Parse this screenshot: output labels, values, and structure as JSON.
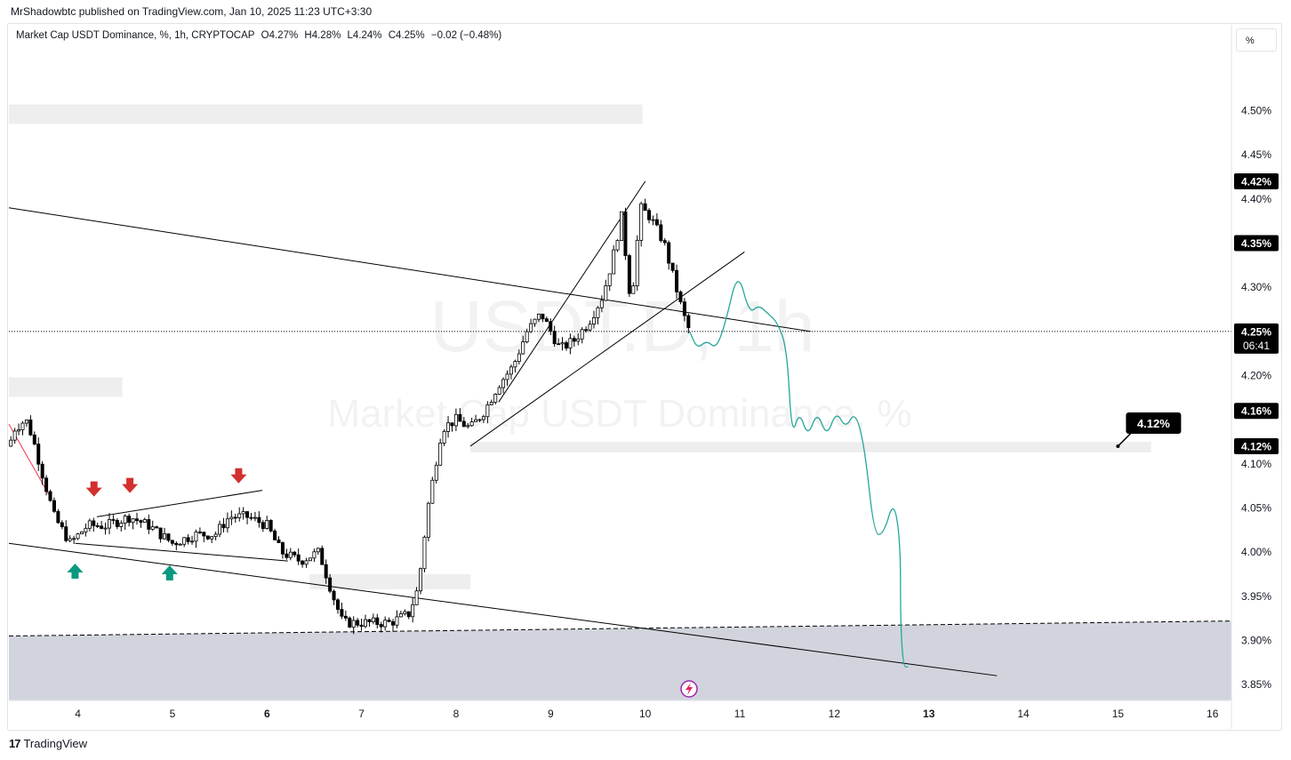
{
  "header": {
    "publisher": "MrShadowbtc published on TradingView.com, Jan 10, 2025 11:23 UTC+3:30"
  },
  "legend": {
    "symbol": "Market Cap USDT Dominance, %, 1h, CRYPTOCAP",
    "open": "O4.27%",
    "high": "H4.28%",
    "low": "L4.24%",
    "close": "C4.25%",
    "change": "−0.02 (−0.48%)"
  },
  "unit_button": "%",
  "watermark": {
    "ticker": "USDT.D, 1h",
    "name": "Market Cap USDT Dominance, %"
  },
  "footer": {
    "brand": "TradingView"
  },
  "colors": {
    "candle": "#000000",
    "projection": "#26a69a",
    "down_arrow": "#d32f2f",
    "up_arrow": "#089981",
    "trend_line": "#000000",
    "zone_fill": "#d1d4dc",
    "grey_box": "#eeeeee",
    "red_line": "#f23645"
  },
  "icons": [
    "lightning-icon",
    "tradingview-logo-icon"
  ],
  "chart_data": {
    "type": "candlestick",
    "title": "Market Cap USDT Dominance, %, 1h, CRYPTOCAP",
    "x_ticks": [
      {
        "label": "4",
        "day": 4
      },
      {
        "label": "5",
        "day": 5
      },
      {
        "label": "6",
        "day": 6,
        "bold": true
      },
      {
        "label": "7",
        "day": 7
      },
      {
        "label": "8",
        "day": 8
      },
      {
        "label": "9",
        "day": 9
      },
      {
        "label": "10",
        "day": 10
      },
      {
        "label": "11",
        "day": 11
      },
      {
        "label": "12",
        "day": 12
      },
      {
        "label": "13",
        "day": 13,
        "bold": true
      },
      {
        "label": "14",
        "day": 14
      },
      {
        "label": "15",
        "day": 15
      },
      {
        "label": "16",
        "day": 16
      }
    ],
    "xlim": [
      3.27,
      16.2
    ],
    "y_ticks": [
      "4.50%",
      "4.45%",
      "4.40%",
      "4.30%",
      "4.20%",
      "4.10%",
      "4.05%",
      "4.00%",
      "3.95%",
      "3.90%",
      "3.85%"
    ],
    "y_tick_values": [
      4.5,
      4.45,
      4.4,
      4.3,
      4.2,
      4.1,
      4.05,
      4.0,
      3.95,
      3.9,
      3.85
    ],
    "ylim": [
      3.832,
      4.567
    ],
    "price_labels": [
      {
        "text": "4.42%",
        "value": 4.42
      },
      {
        "text": "4.35%",
        "value": 4.35
      },
      {
        "text": "4.16%",
        "value": 4.16
      },
      {
        "text": "4.12%",
        "value": 4.12
      }
    ],
    "last_price": {
      "value": 4.25,
      "label": "4.25%",
      "countdown": "06:41"
    },
    "callout": {
      "text": "4.12%",
      "day": 15.0,
      "value": 4.12
    },
    "close_path": [
      [
        3.27,
        4.12
      ],
      [
        3.33,
        4.14
      ],
      [
        3.45,
        4.15
      ],
      [
        3.52,
        4.13
      ],
      [
        3.62,
        4.09
      ],
      [
        3.75,
        4.04
      ],
      [
        3.92,
        4.01
      ],
      [
        4.1,
        4.03
      ],
      [
        4.3,
        4.03
      ],
      [
        4.55,
        4.04
      ],
      [
        4.75,
        4.03
      ],
      [
        5.0,
        4.01
      ],
      [
        5.25,
        4.02
      ],
      [
        5.45,
        4.02
      ],
      [
        5.6,
        4.04
      ],
      [
        5.8,
        4.04
      ],
      [
        6.0,
        4.03
      ],
      [
        6.15,
        4.0
      ],
      [
        6.35,
        3.99
      ],
      [
        6.55,
        4.0
      ],
      [
        6.7,
        3.95
      ],
      [
        6.8,
        3.92
      ],
      [
        7.0,
        3.92
      ],
      [
        7.3,
        3.92
      ],
      [
        7.5,
        3.93
      ],
      [
        7.6,
        3.96
      ],
      [
        7.7,
        4.05
      ],
      [
        7.85,
        4.14
      ],
      [
        8.0,
        4.15
      ],
      [
        8.15,
        4.14
      ],
      [
        8.3,
        4.16
      ],
      [
        8.45,
        4.19
      ],
      [
        8.6,
        4.21
      ],
      [
        8.75,
        4.25
      ],
      [
        8.9,
        4.27
      ],
      [
        9.1,
        4.23
      ],
      [
        9.25,
        4.24
      ],
      [
        9.4,
        4.26
      ],
      [
        9.55,
        4.29
      ],
      [
        9.65,
        4.33
      ],
      [
        9.75,
        4.38
      ],
      [
        9.85,
        4.28
      ],
      [
        9.95,
        4.39
      ],
      [
        10.05,
        4.38
      ],
      [
        10.2,
        4.35
      ],
      [
        10.3,
        4.31
      ],
      [
        10.4,
        4.27
      ],
      [
        10.47,
        4.25
      ]
    ],
    "projection_path": [
      [
        10.47,
        4.25
      ],
      [
        10.55,
        4.23
      ],
      [
        10.65,
        4.24
      ],
      [
        10.75,
        4.23
      ],
      [
        10.85,
        4.26
      ],
      [
        10.98,
        4.32
      ],
      [
        11.1,
        4.27
      ],
      [
        11.2,
        4.28
      ],
      [
        11.3,
        4.27
      ],
      [
        11.4,
        4.26
      ],
      [
        11.5,
        4.23
      ],
      [
        11.55,
        4.13
      ],
      [
        11.63,
        4.16
      ],
      [
        11.72,
        4.13
      ],
      [
        11.82,
        4.16
      ],
      [
        11.92,
        4.13
      ],
      [
        12.02,
        4.16
      ],
      [
        12.12,
        4.14
      ],
      [
        12.22,
        4.16
      ],
      [
        12.32,
        4.12
      ],
      [
        12.42,
        4.02
      ],
      [
        12.52,
        4.02
      ],
      [
        12.63,
        4.06
      ],
      [
        12.7,
        4.01
      ],
      [
        12.7,
        3.92
      ],
      [
        12.73,
        3.87
      ],
      [
        12.78,
        3.87
      ]
    ],
    "trend_lines": [
      {
        "name": "upper-channel",
        "from": [
          3.27,
          4.39
        ],
        "to": [
          11.75,
          4.25
        ]
      },
      {
        "name": "lower-channel",
        "from": [
          3.27,
          4.01
        ],
        "to": [
          13.72,
          3.86
        ]
      },
      {
        "name": "wedge-upper",
        "from": [
          8.45,
          4.17
        ],
        "to": [
          10.0,
          4.42
        ]
      },
      {
        "name": "wedge-lower",
        "from": [
          8.15,
          4.12
        ],
        "to": [
          11.05,
          4.34
        ]
      },
      {
        "name": "flag-top",
        "from": [
          4.2,
          4.04
        ],
        "to": [
          5.95,
          4.07
        ]
      },
      {
        "name": "flag-bottom",
        "from": [
          3.97,
          4.01
        ],
        "to": [
          6.22,
          3.99
        ]
      }
    ],
    "support_zone": {
      "top_left": 3.905,
      "top_right": 3.922,
      "bottom": 3.832
    },
    "grey_boxes": [
      {
        "from": 3.27,
        "to": 9.97,
        "top": 4.507,
        "bottom": 4.485
      },
      {
        "from": 3.27,
        "to": 4.47,
        "top": 4.198,
        "bottom": 4.176
      },
      {
        "from": 6.45,
        "to": 8.15,
        "top": 3.975,
        "bottom": 3.958
      },
      {
        "from": 8.15,
        "to": 15.35,
        "top": 4.125,
        "bottom": 4.113
      }
    ],
    "down_arrows": [
      {
        "day": 4.17,
        "value": 4.07
      },
      {
        "day": 4.55,
        "value": 4.074
      },
      {
        "day": 5.7,
        "value": 4.085
      }
    ],
    "up_arrows": [
      {
        "day": 3.97,
        "value": 3.98
      },
      {
        "day": 4.97,
        "value": 3.978
      }
    ],
    "red_line": {
      "from": [
        3.27,
        4.145
      ],
      "to": [
        3.72,
        4.06
      ]
    },
    "grid": false,
    "legend_position": "top-left"
  }
}
